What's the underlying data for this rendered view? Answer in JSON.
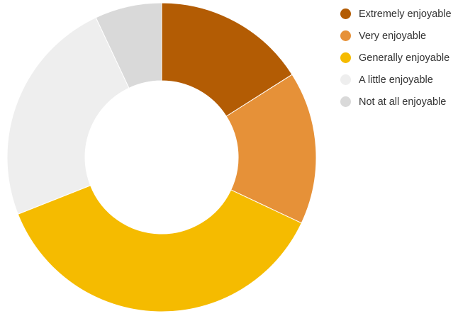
{
  "chart_data": {
    "type": "pie",
    "variant": "donut",
    "categories": [
      "Extremely enjoyable",
      "Very enjoyable",
      "Generally enjoyable",
      "A little enjoyable",
      "Not at all enjoyable"
    ],
    "values": [
      16,
      16,
      37,
      24,
      7
    ],
    "unit": "%",
    "colors": [
      "#b35c04",
      "#e69138",
      "#f5bb00",
      "#eeeeee",
      "#d9d9d9"
    ],
    "start": "12 o'clock, clockwise",
    "legend": {
      "position": "right",
      "items": [
        {
          "label": "Extremely enjoyable",
          "color": "#b35c04"
        },
        {
          "label": "Very enjoyable",
          "color": "#e69138"
        },
        {
          "label": "Generally enjoyable",
          "color": "#f5bb00"
        },
        {
          "label": "A little enjoyable",
          "color": "#eeeeee"
        },
        {
          "label": "Not at all enjoyable",
          "color": "#d9d9d9"
        }
      ]
    }
  }
}
